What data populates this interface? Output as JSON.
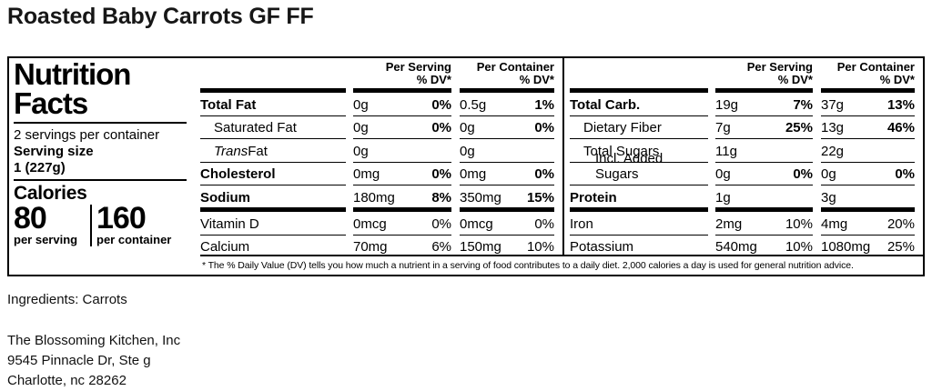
{
  "colors": {
    "ink": "#000000",
    "background": "#ffffff"
  },
  "page": {
    "title": "Roasted Baby Carrots GF FF"
  },
  "label": {
    "heading_line1": "Nutrition",
    "heading_line2": "Facts",
    "servings_per_container": "2 servings per container",
    "serving_size_label": "Serving size",
    "serving_size_value": "1 (227g)",
    "calories": {
      "label": "Calories",
      "per_serving_value": "80",
      "per_serving_caption": "per serving",
      "per_container_value": "160",
      "per_container_caption": "per container"
    },
    "col_headers": {
      "per_serving_line1": "Per Serving",
      "per_serving_line2": "% DV*",
      "per_container_line1": "Per Container",
      "per_container_line2": "% DV*"
    },
    "left_table": {
      "rows": [
        {
          "name": "Total Fat",
          "serving": {
            "amount": "0g",
            "dv": "0%"
          },
          "container": {
            "amount": "0.5g",
            "dv": "1%"
          }
        },
        {
          "name": "Saturated Fat",
          "serving": {
            "amount": "0g",
            "dv": "0%"
          },
          "container": {
            "amount": "0g",
            "dv": "0%"
          }
        },
        {
          "name_italic": "Trans",
          "name": " Fat",
          "serving": {
            "amount": "0g",
            "dv": ""
          },
          "container": {
            "amount": "0g",
            "dv": ""
          }
        },
        {
          "name": "Cholesterol",
          "serving": {
            "amount": "0mg",
            "dv": "0%"
          },
          "container": {
            "amount": "0mg",
            "dv": "0%"
          }
        },
        {
          "name": "Sodium",
          "serving": {
            "amount": "180mg",
            "dv": "8%"
          },
          "container": {
            "amount": "350mg",
            "dv": "15%"
          }
        },
        {
          "name": "Vitamin D",
          "serving": {
            "amount": "0mcg",
            "dv": "0%"
          },
          "container": {
            "amount": "0mcg",
            "dv": "0%"
          }
        },
        {
          "name": "Calcium",
          "serving": {
            "amount": "70mg",
            "dv": "6%"
          },
          "container": {
            "amount": "150mg",
            "dv": "10%"
          }
        }
      ]
    },
    "right_table": {
      "rows": [
        {
          "name": "Total Carb.",
          "serving": {
            "amount": "19g",
            "dv": "7%"
          },
          "container": {
            "amount": "37g",
            "dv": "13%"
          }
        },
        {
          "name": "Dietary Fiber",
          "serving": {
            "amount": "7g",
            "dv": "25%"
          },
          "container": {
            "amount": "13g",
            "dv": "46%"
          }
        },
        {
          "name": "Total Sugars",
          "serving": {
            "amount": "11g",
            "dv": ""
          },
          "container": {
            "amount": "22g",
            "dv": ""
          }
        },
        {
          "name": "Incl. Added Sugars",
          "serving": {
            "amount": "0g",
            "dv": "0%"
          },
          "container": {
            "amount": "0g",
            "dv": "0%"
          }
        },
        {
          "name": "Protein",
          "serving": {
            "amount": "1g",
            "dv": ""
          },
          "container": {
            "amount": "3g",
            "dv": ""
          }
        },
        {
          "name": "Iron",
          "serving": {
            "amount": "2mg",
            "dv": "10%"
          },
          "container": {
            "amount": "4mg",
            "dv": "20%"
          }
        },
        {
          "name": "Potassium",
          "serving": {
            "amount": "540mg",
            "dv": "10%"
          },
          "container": {
            "amount": "1080mg",
            "dv": "25%"
          }
        }
      ]
    },
    "footnote": "* The % Daily Value (DV) tells you how much a nutrient in a serving of food contributes to a daily diet. 2,000 calories a day is used for general nutrition advice."
  },
  "ingredients": "Ingredients: Carrots",
  "manufacturer": {
    "line1": "The Blossoming Kitchen, Inc",
    "line2": "9545 Pinnacle Dr, Ste g",
    "line3": "Charlotte, nc 28262"
  }
}
